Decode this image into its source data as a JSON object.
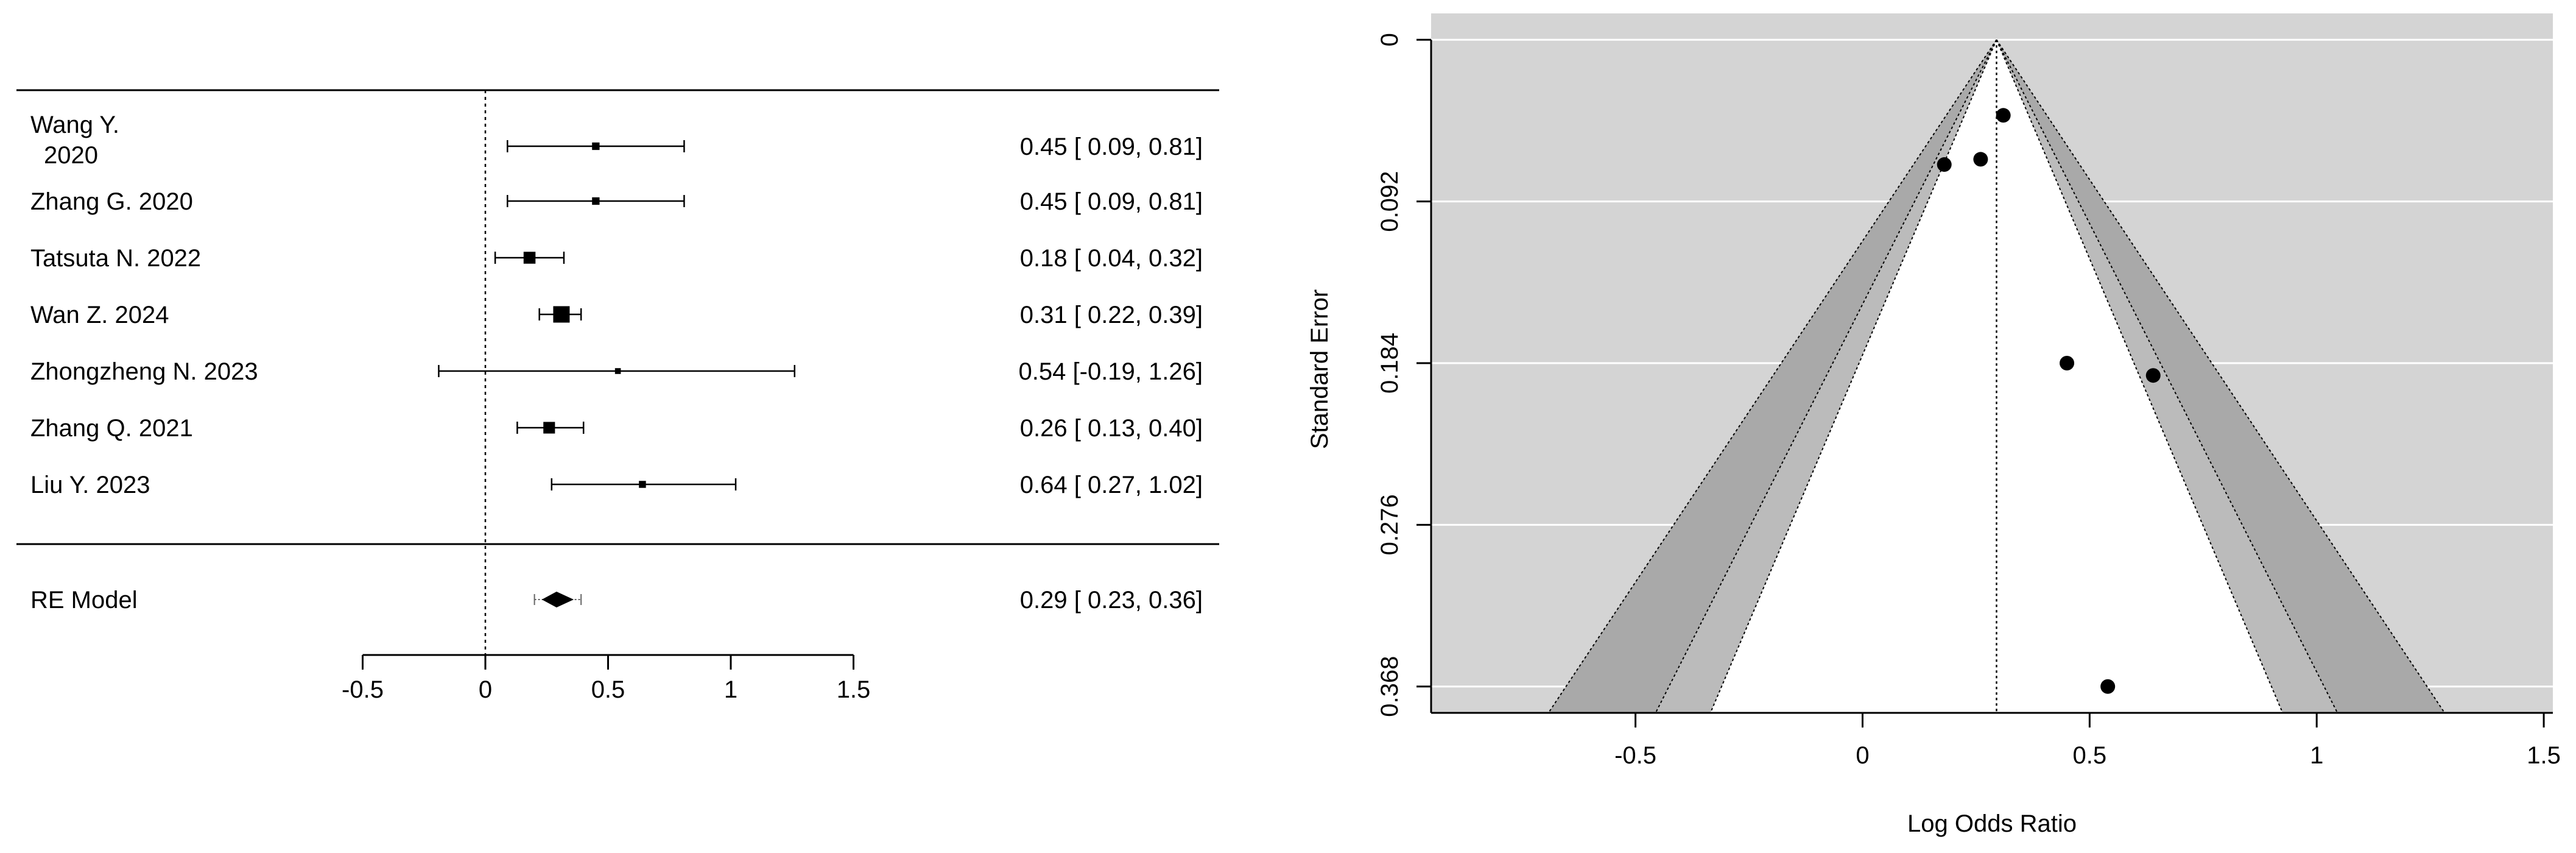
{
  "chart_data": [
    {
      "type": "forest",
      "studies": [
        {
          "label_lines": [
            "Wang Y.",
            "2020"
          ],
          "estimate": 0.45,
          "ci_low": 0.09,
          "ci_high": 0.81,
          "ci_text": "0.45 [ 0.09, 0.81]",
          "weight": 0.6
        },
        {
          "label_lines": [
            "Zhang G. 2020"
          ],
          "estimate": 0.45,
          "ci_low": 0.09,
          "ci_high": 0.81,
          "ci_text": "0.45 [ 0.09, 0.81]",
          "weight": 0.6
        },
        {
          "label_lines": [
            "Tatsuta N. 2022"
          ],
          "estimate": 0.18,
          "ci_low": 0.04,
          "ci_high": 0.32,
          "ci_text": "0.18 [ 0.04, 0.32]",
          "weight": 1.9
        },
        {
          "label_lines": [
            "Wan Z. 2024"
          ],
          "estimate": 0.31,
          "ci_low": 0.22,
          "ci_high": 0.39,
          "ci_text": "0.31 [ 0.22, 0.39]",
          "weight": 4.0
        },
        {
          "label_lines": [
            "Zhongzheng N. 2023"
          ],
          "estimate": 0.54,
          "ci_low": -0.19,
          "ci_high": 1.26,
          "ci_text": "0.54 [-0.19, 1.26]",
          "weight": 0.3
        },
        {
          "label_lines": [
            "Zhang Q. 2021"
          ],
          "estimate": 0.26,
          "ci_low": 0.13,
          "ci_high": 0.4,
          "ci_text": "0.26 [ 0.13, 0.40]",
          "weight": 1.8
        },
        {
          "label_lines": [
            "Liu Y. 2023"
          ],
          "estimate": 0.64,
          "ci_low": 0.27,
          "ci_high": 1.02,
          "ci_text": "0.64 [ 0.27, 1.02]",
          "weight": 0.5
        }
      ],
      "summary": {
        "label": "RE Model",
        "estimate": 0.29,
        "ci_low": 0.23,
        "ci_high": 0.36,
        "pi_low": 0.2,
        "pi_high": 0.39,
        "ci_text": "0.29 [ 0.23, 0.36]"
      },
      "x_ticks": [
        -0.5,
        0,
        0.5,
        1,
        1.5
      ],
      "x_tick_labels": [
        "-0.5",
        "0",
        "0.5",
        "1",
        "1.5"
      ],
      "xlim": [
        -0.5,
        1.5
      ],
      "reference_line": 0
    },
    {
      "type": "scatter",
      "xlabel": "Log Odds Ratio",
      "ylabel": "Standard Error",
      "xlim": [
        -0.95,
        1.52
      ],
      "ylim": [
        0.383,
        -0.015
      ],
      "y_reversed": true,
      "x_ticks": [
        -0.5,
        0,
        0.5,
        1,
        1.5
      ],
      "x_tick_labels": [
        "-0.5",
        "0",
        "0.5",
        "1",
        "1.5"
      ],
      "y_ticks": [
        0,
        0.092,
        0.184,
        0.276,
        0.368
      ],
      "y_tick_labels": [
        "0",
        "0.092",
        "0.184",
        "0.276",
        "0.368"
      ],
      "grid": true,
      "center": 0.295,
      "contour_z": [
        1.645,
        1.96,
        2.576
      ],
      "points": [
        {
          "x": 0.31,
          "y": 0.043
        },
        {
          "x": 0.26,
          "y": 0.068
        },
        {
          "x": 0.18,
          "y": 0.071
        },
        {
          "x": 0.45,
          "y": 0.184
        },
        {
          "x": 0.64,
          "y": 0.191
        },
        {
          "x": 0.54,
          "y": 0.368
        }
      ]
    }
  ]
}
